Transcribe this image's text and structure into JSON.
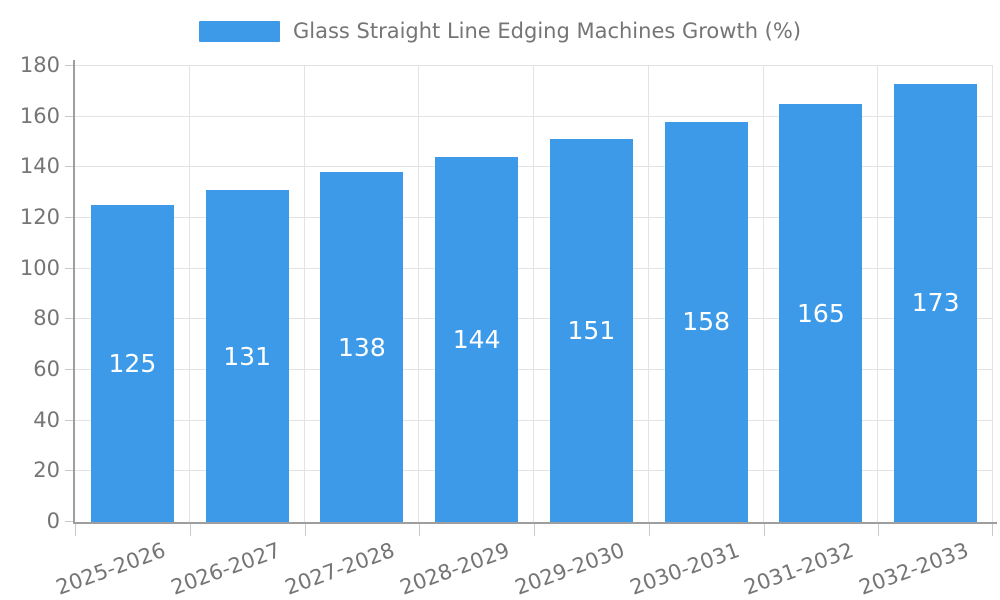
{
  "legend": {
    "label": "Glass Straight Line Edging Machines Growth (%)"
  },
  "chart_data": {
    "type": "bar",
    "title": "Glass Straight Line Edging Machines Growth (%)",
    "categories": [
      "2025-2026",
      "2026-2027",
      "2027-2028",
      "2028-2029",
      "2029-2030",
      "2030-2031",
      "2031-2032",
      "2032-2033"
    ],
    "series": [
      {
        "name": "Glass Straight Line Edging Machines Growth (%)",
        "values": [
          125,
          131,
          138,
          144,
          151,
          158,
          165,
          173
        ]
      }
    ],
    "values": [
      125,
      131,
      138,
      144,
      151,
      158,
      165,
      173
    ],
    "bar_labels": [
      "125",
      "131",
      "138",
      "144",
      "151",
      "158",
      "165",
      "173"
    ],
    "xlabel": "",
    "ylabel": "",
    "ylim": [
      0,
      180
    ],
    "ytick_step": 20,
    "yticks": [
      0,
      20,
      40,
      60,
      80,
      100,
      120,
      140,
      160,
      180
    ],
    "grid": true,
    "legend_position": "top-center",
    "bar_labels_position": "inside-center",
    "x_label_rotation_deg": -20
  },
  "colors": {
    "bar": "#3D9AE8",
    "bar_label": "#FFFFFF",
    "axis": "#9E9E9E",
    "grid": "#E3E3E3",
    "tick": "#C9C9C9",
    "text": "#757575",
    "background": "#FFFFFF"
  }
}
